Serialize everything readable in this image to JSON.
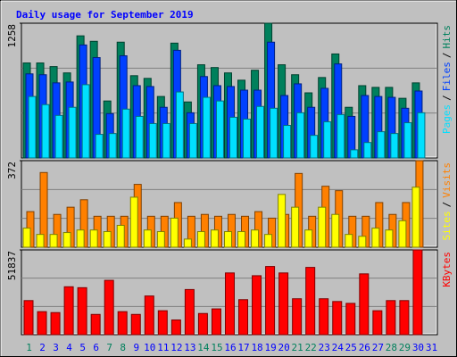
{
  "title": "Daily usage for September 2019",
  "legend_separator": "/",
  "chart_data": [
    {
      "type": "bar",
      "ylim": [
        0,
        1258
      ],
      "yticks": [
        1258
      ],
      "grid_divisions": 3,
      "series": [
        {
          "name": "Hits",
          "color": "#00805c",
          "values": [
            887,
            887,
            853,
            794,
            1140,
            1089,
            532,
            1081,
            768,
            743,
            574,
            1072,
            523,
            870,
            844,
            794,
            726,
            819,
            1258,
            870,
            777,
            608,
            751,
            971,
            473,
            675,
            659,
            659,
            557,
            701,
            null
          ]
        },
        {
          "name": "Files",
          "color": "#0040ff",
          "values": [
            785,
            777,
            701,
            709,
            1055,
            937,
            414,
            954,
            675,
            667,
            473,
            1005,
            422,
            760,
            675,
            667,
            633,
            633,
            1081,
            583,
            692,
            473,
            650,
            878,
            388,
            583,
            574,
            566,
            464,
            625,
            null
          ]
        },
        {
          "name": "Pages",
          "color": "#00e0ff",
          "values": [
            574,
            498,
            397,
            473,
            684,
            220,
            228,
            456,
            388,
            321,
            321,
            616,
            321,
            566,
            532,
            380,
            363,
            481,
            464,
            304,
            422,
            211,
            338,
            405,
            76,
            144,
            245,
            228,
            329,
            422,
            null
          ]
        }
      ]
    },
    {
      "type": "bar",
      "ylim": [
        0,
        372
      ],
      "yticks": [
        372
      ],
      "grid_divisions": 3,
      "series": [
        {
          "name": "Visits",
          "color": "#ff8000",
          "values": [
            153,
            321,
            141,
            172,
            204,
            133,
            133,
            133,
            270,
            133,
            133,
            192,
            133,
            141,
            133,
            141,
            133,
            153,
            125,
            141,
            317,
            133,
            262,
            243,
            133,
            133,
            192,
            141,
            192,
            372,
            null
          ]
        },
        {
          "name": "Sites",
          "color": "#ffff00",
          "values": [
            82,
            55,
            55,
            63,
            74,
            74,
            67,
            94,
            215,
            74,
            67,
            125,
            35,
            67,
            74,
            67,
            67,
            74,
            55,
            227,
            172,
            74,
            172,
            141,
            55,
            47,
            82,
            74,
            114,
            258,
            null
          ]
        }
      ]
    },
    {
      "type": "bar",
      "ylim": [
        0,
        51837
      ],
      "yticks": [
        51837
      ],
      "grid_divisions": 3,
      "categories": [
        "1",
        "2",
        "3",
        "4",
        "5",
        "6",
        "7",
        "8",
        "9",
        "10",
        "11",
        "12",
        "13",
        "14",
        "15",
        "16",
        "17",
        "18",
        "19",
        "20",
        "21",
        "22",
        "23",
        "24",
        "25",
        "26",
        "27",
        "28",
        "29",
        "30",
        "31"
      ],
      "category_colors": [
        "#00805c",
        "#0000ff",
        "#0000ff",
        "#0000ff",
        "#0000ff",
        "#0000ff",
        "#00805c",
        "#00805c",
        "#0000ff",
        "#0000ff",
        "#0000ff",
        "#0000ff",
        "#0000ff",
        "#00805c",
        "#00805c",
        "#0000ff",
        "#0000ff",
        "#0000ff",
        "#0000ff",
        "#0000ff",
        "#00805c",
        "#00805c",
        "#0000ff",
        "#0000ff",
        "#0000ff",
        "#0000ff",
        "#0000ff",
        "#00805c",
        "#00805c",
        "#0000ff",
        "#0000ff"
      ],
      "series": [
        {
          "name": "KBytes",
          "color": "#ff0000",
          "values": [
            20847,
            14086,
            13523,
            29299,
            28736,
            12396,
            33243,
            14086,
            12396,
            23665,
            14650,
            9015,
            27609,
            12959,
            15777,
            37751,
            21411,
            36060,
            41695,
            37751,
            21974,
            41131,
            21974,
            20284,
            19157,
            37187,
            14650,
            20847,
            20847,
            51837,
            null
          ]
        }
      ]
    }
  ]
}
